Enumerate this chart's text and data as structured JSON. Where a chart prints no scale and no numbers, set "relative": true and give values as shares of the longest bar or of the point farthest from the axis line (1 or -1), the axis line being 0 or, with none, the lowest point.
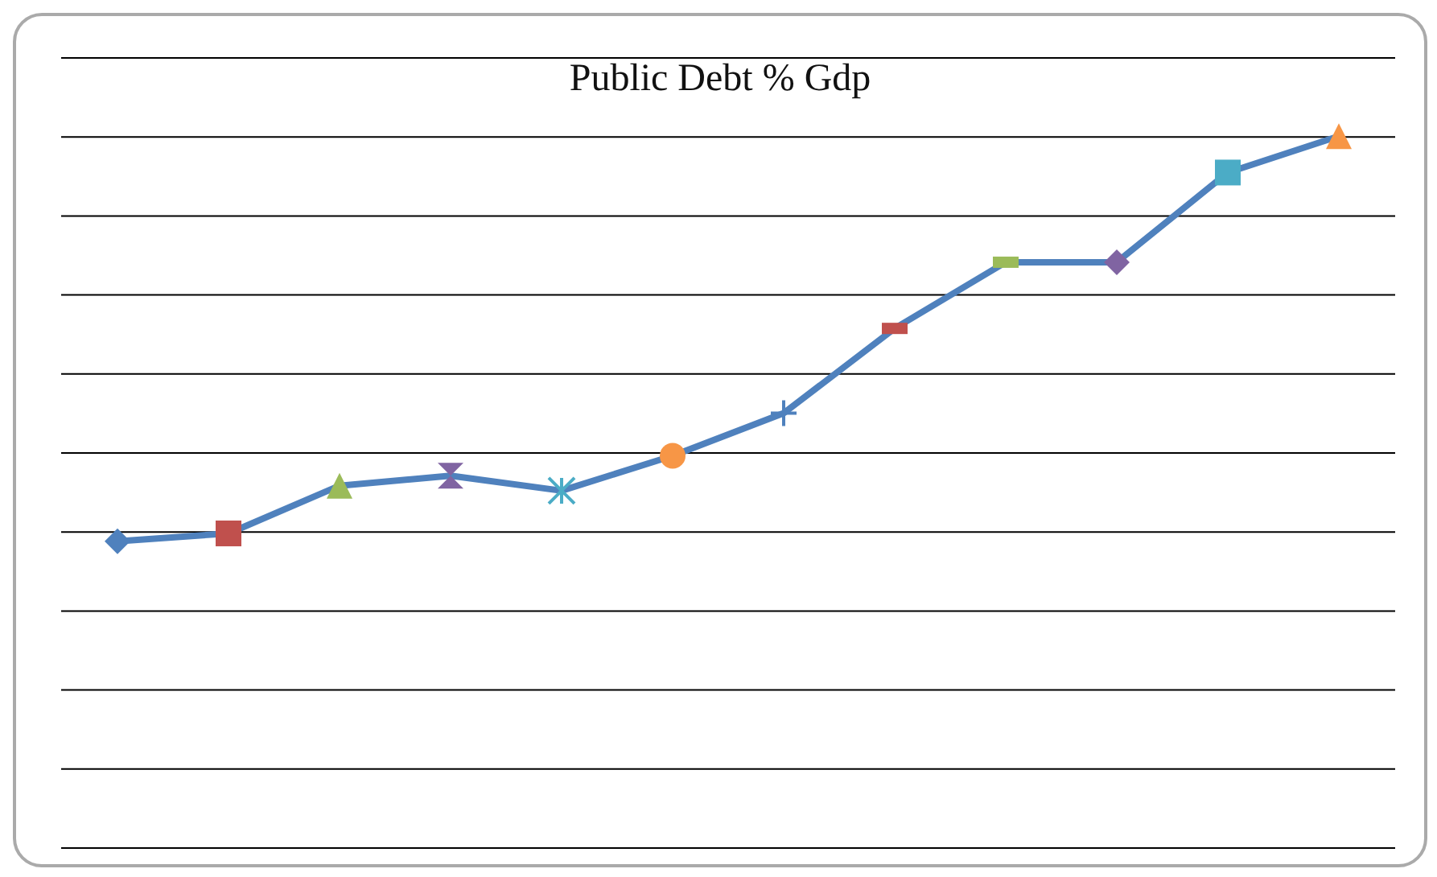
{
  "chart_data": {
    "type": "line",
    "title": "Public Debt % Gdp",
    "relative": true,
    "categories": [
      null,
      null,
      null,
      null,
      null,
      null,
      null,
      null,
      null,
      null,
      null,
      null
    ],
    "values": [
      0.431,
      0.442,
      0.509,
      0.523,
      0.502,
      0.551,
      0.611,
      0.73,
      0.823,
      0.823,
      0.949,
      1.0
    ],
    "color": "#4f81bd",
    "colors": [
      "#4f81bd",
      "#c0504d",
      "#9bbb59",
      "#8064a2",
      "#4bacc6",
      "#f79646",
      "#4f81bd",
      "#c0504d",
      "#9bbb59",
      "#8064a2",
      "#4bacc6",
      "#f79646"
    ],
    "marker": "diamond",
    "grid": "y",
    "legend": false
  }
}
